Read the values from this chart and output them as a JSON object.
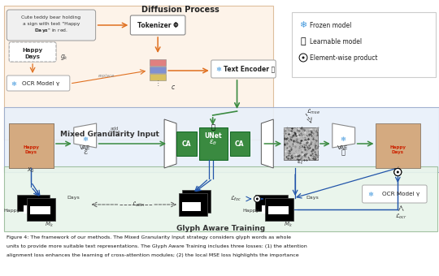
{
  "title": "Figure 4: The framework of our methods. The Mixed Granularity Input strategy considers glyph words as whole\nunits to provide more suitable text representations. The Glyph Aware Training includes three losses: (1) the attention\nalignment loss enhances the learning of cross-attention modules; (2) the local MSE loss highlights the importance",
  "bg_color": "#ffffff",
  "top_panel_color": "#fdf3e8",
  "mid_panel_color": "#e8f0fa",
  "bottom_panel_color": "#e8f4ea",
  "diffusion_label": "Diffusion Process",
  "mixed_gran_label": "Mixed Granularity Input",
  "glyph_aware_label": "Glyph Aware Training",
  "legend_items": [
    "Frozen model",
    "Learnable model",
    "Element-wise product"
  ],
  "orange_color": "#e07020",
  "green_color": "#3a8a40",
  "blue_color": "#2255aa",
  "gray_noisy": "#aaaaaa",
  "text_color": "#222222"
}
